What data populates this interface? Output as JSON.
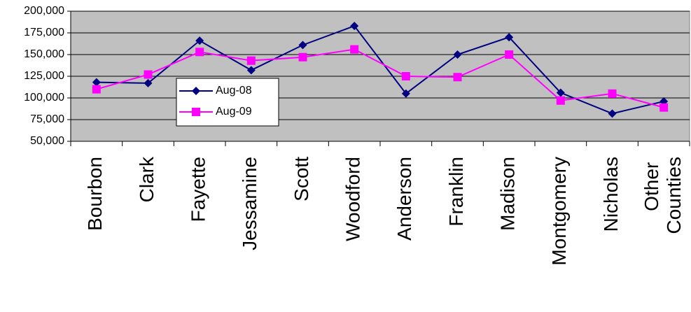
{
  "chart_data": {
    "type": "line",
    "categories": [
      "Bourbon",
      "Clark",
      "Fayette",
      "Jessamine",
      "Scott",
      "Woodford",
      "Anderson",
      "Franklin",
      "Madison",
      "Montgomery",
      "Nicholas",
      "Other Counties"
    ],
    "series": [
      {
        "name": "Aug-08",
        "color": "#000080",
        "marker": "diamond",
        "values": [
          118000,
          117000,
          166000,
          132000,
          161000,
          183000,
          105000,
          150000,
          170000,
          106000,
          82000,
          96000
        ]
      },
      {
        "name": "Aug-09",
        "color": "#ff00ff",
        "marker": "square",
        "values": [
          110000,
          127000,
          153000,
          143000,
          147000,
          156000,
          125000,
          124000,
          150000,
          97000,
          105000,
          89000
        ]
      }
    ],
    "ylim": [
      50000,
      200000
    ],
    "yticks": [
      {
        "value": 50000,
        "label": "50,000"
      },
      {
        "value": 75000,
        "label": "75,000"
      },
      {
        "value": 100000,
        "label": "100,000"
      },
      {
        "value": 125000,
        "label": "125,000"
      },
      {
        "value": 150000,
        "label": "150,000"
      },
      {
        "value": 175000,
        "label": "175,000"
      },
      {
        "value": 200000,
        "label": "200,000"
      }
    ],
    "grid": true
  }
}
